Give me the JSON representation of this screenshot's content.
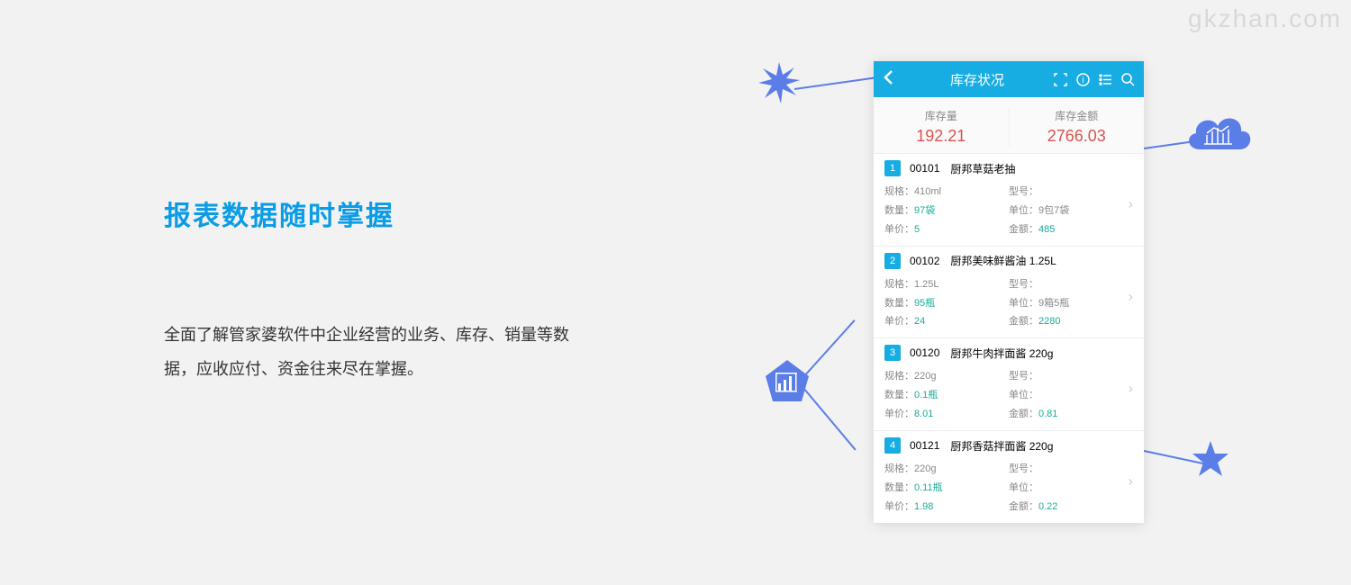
{
  "watermark": "gkzhan.com",
  "headline": "报表数据随时掌握",
  "body_text": "全面了解管家婆软件中企业经营的业务、库存、销量等数据，应收应付、资金往来尽在掌握。",
  "phone": {
    "title": "库存状况",
    "summary": {
      "qty_label": "库存量",
      "qty_value": "192.21",
      "amt_label": "库存金额",
      "amt_value": "2766.03"
    },
    "items": [
      {
        "num": "1",
        "code": "00101",
        "name": "厨邦草菇老抽",
        "spec": "410ml",
        "model": "",
        "qty": "97袋",
        "unit": "9包7袋",
        "price": "5",
        "amount": "485"
      },
      {
        "num": "2",
        "code": "00102",
        "name": "厨邦美味鲜酱油 1.25L",
        "spec": "1.25L",
        "model": "",
        "qty": "95瓶",
        "unit": "9箱5瓶",
        "price": "24",
        "amount": "2280"
      },
      {
        "num": "3",
        "code": "00120",
        "name": "厨邦牛肉拌面酱 220g",
        "spec": "220g",
        "model": "",
        "qty": "0.1瓶",
        "unit": "",
        "price": "8.01",
        "amount": "0.81"
      },
      {
        "num": "4",
        "code": "00121",
        "name": "厨邦香菇拌面酱 220g",
        "spec": "220g",
        "model": "",
        "qty": "0.11瓶",
        "unit": "",
        "price": "1.98",
        "amount": "0.22"
      }
    ],
    "labels": {
      "spec": "规格：",
      "model": "型号：",
      "qty": "数量：",
      "unit": "单位：",
      "price": "单价：",
      "amount": "金额："
    }
  },
  "colors": {
    "accent_blue": "#17ace2",
    "headline_blue": "#0a9ce6",
    "shape_blue": "#5b7de8",
    "value_red": "#d9534f",
    "value_teal": "#1aab9b",
    "background": "#f2f2f2"
  }
}
